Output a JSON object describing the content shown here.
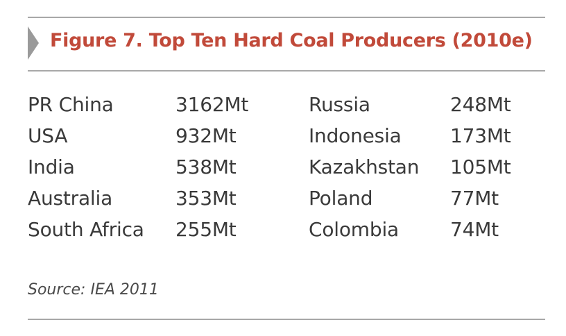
{
  "figure": {
    "title": "Figure 7. Top Ten Hard Coal Producers (2010e)",
    "accent_color": "#c14a3a",
    "chevron_color": "#9a9a9a",
    "icon": "chevron-right-icon"
  },
  "rows": [
    {
      "left_country": "PR China",
      "left_value": "3162Mt",
      "right_country": "Russia",
      "right_value": "248Mt"
    },
    {
      "left_country": "USA",
      "left_value": "932Mt",
      "right_country": "Indonesia",
      "right_value": "173Mt"
    },
    {
      "left_country": "India",
      "left_value": "538Mt",
      "right_country": "Kazakhstan",
      "right_value": "105Mt"
    },
    {
      "left_country": "Australia",
      "left_value": "353Mt",
      "right_country": "Poland",
      "right_value": "77Mt"
    },
    {
      "left_country": "South Africa",
      "left_value": "255Mt",
      "right_country": "Colombia",
      "right_value": "74Mt"
    }
  ],
  "source": "Source: IEA 2011"
}
